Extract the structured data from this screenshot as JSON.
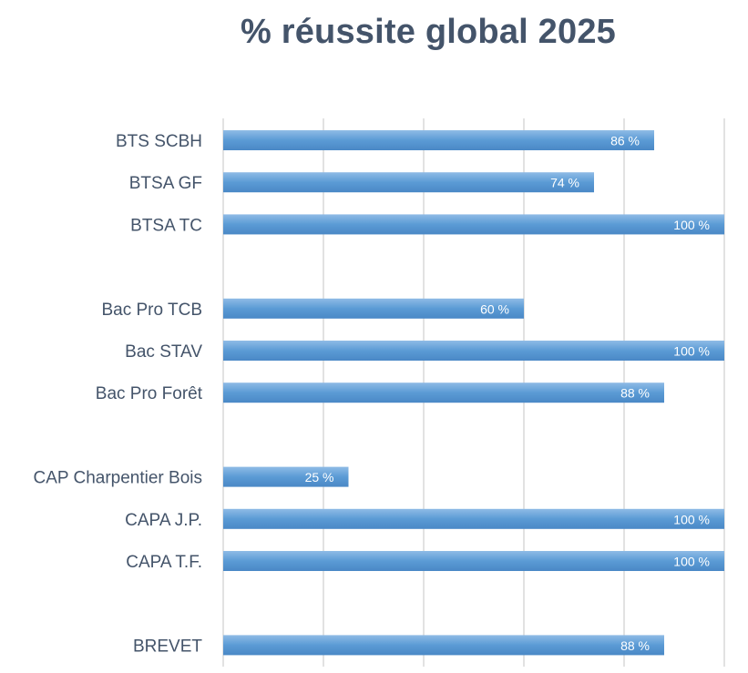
{
  "chart_data": {
    "type": "bar",
    "orientation": "horizontal",
    "title": "% réussite global 2025",
    "xlabel": "",
    "ylabel": "",
    "xlim": [
      0,
      100
    ],
    "grid": true,
    "categories": [
      "BTS SCBH",
      "BTSA GF",
      "BTSA TC",
      "",
      "Bac Pro TCB",
      "Bac STAV",
      "Bac Pro Forêt",
      "",
      "CAP Charpentier Bois",
      "CAPA J.P.",
      "CAPA T.F.",
      "",
      "BREVET"
    ],
    "values": [
      86,
      74,
      100,
      null,
      60,
      100,
      88,
      null,
      25,
      100,
      100,
      null,
      88
    ],
    "data_labels": [
      "86 %",
      "74 %",
      "100 %",
      "",
      "60 %",
      "100 %",
      "88 %",
      "",
      "25 %",
      "100 %",
      "100 %",
      "",
      "88 %"
    ],
    "colors": {
      "bar": "#5b9bd5",
      "bar_light": "#8fbbe6",
      "bar_dark": "#4a88c6",
      "grid": "#d9d9d9",
      "label": "#44546a",
      "title": "#44546a",
      "data_label": "#ffffff"
    }
  }
}
